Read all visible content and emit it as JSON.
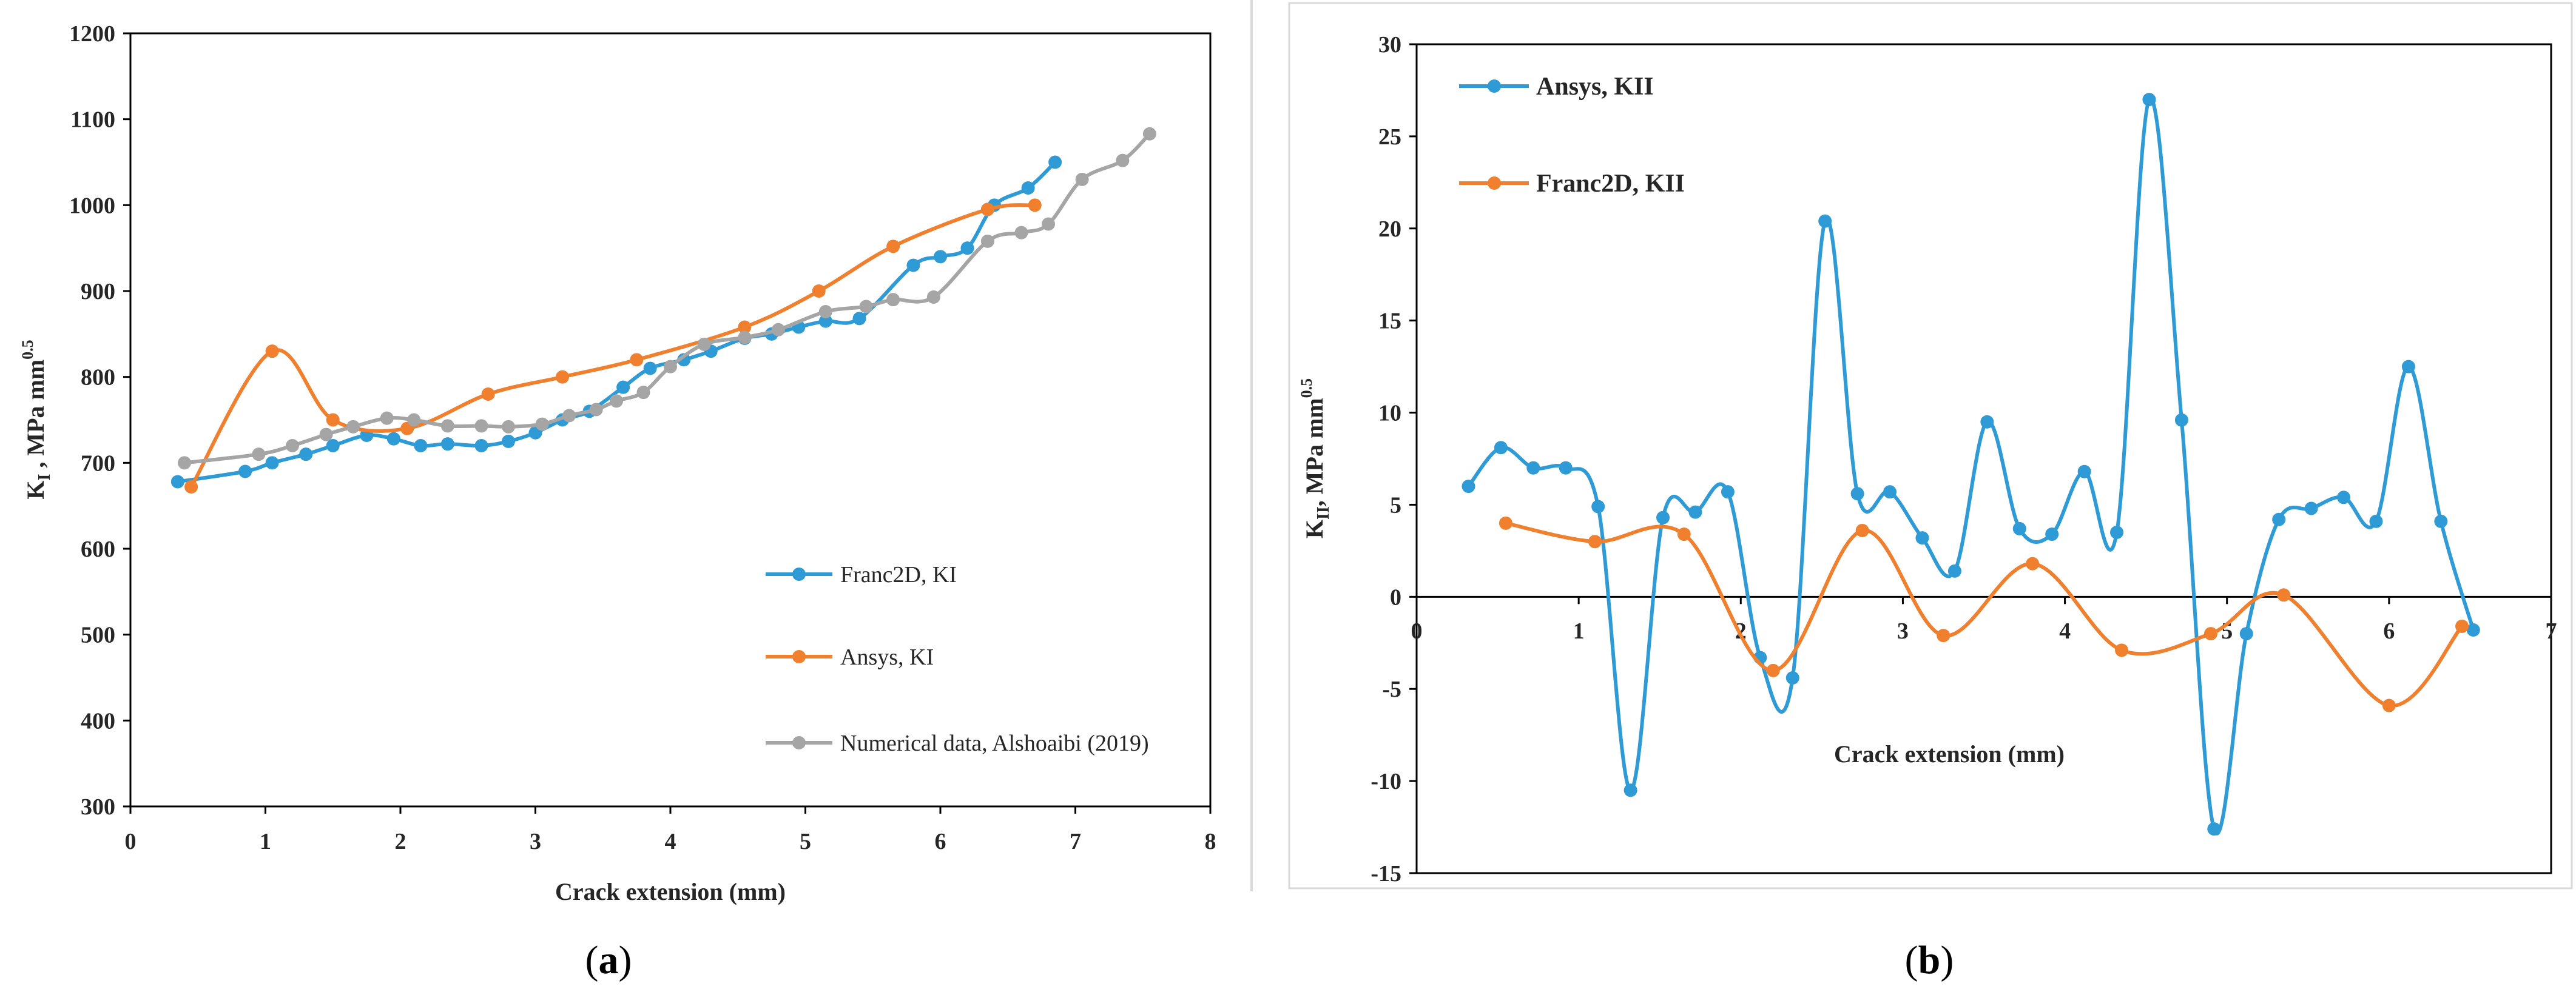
{
  "chart_data": [
    {
      "id": "a",
      "panel_label": "a",
      "type": "line",
      "title": "",
      "xlabel": "Crack extension (mm)",
      "ylabel_main": "K",
      "ylabel_sub": "I",
      "ylabel_rest": " , MPa mm",
      "ylabel_sup": "0.5",
      "xlim": [
        0,
        8
      ],
      "ylim": [
        300,
        1200
      ],
      "x_ticks": [
        "0",
        "1",
        "2",
        "3",
        "4",
        "5",
        "6",
        "7",
        "8"
      ],
      "y_ticks": [
        "300",
        "400",
        "500",
        "600",
        "700",
        "800",
        "900",
        "1000",
        "1100",
        "1200"
      ],
      "legend_position": "bottom-right",
      "series": [
        {
          "name": "Franc2D, KI",
          "color": "#2E9BD6",
          "x": [
            0.35,
            0.85,
            1.05,
            1.3,
            1.5,
            1.75,
            1.95,
            2.15,
            2.35,
            2.6,
            2.8,
            3.0,
            3.2,
            3.4,
            3.65,
            3.85,
            4.1,
            4.3,
            4.55,
            4.75,
            4.95,
            5.15,
            5.4,
            5.8,
            6.0,
            6.2,
            6.4,
            6.65,
            6.85
          ],
          "y": [
            678,
            690,
            700,
            710,
            720,
            732,
            728,
            720,
            722,
            720,
            725,
            735,
            750,
            760,
            788,
            810,
            820,
            830,
            845,
            850,
            858,
            865,
            868,
            930,
            940,
            950,
            1000,
            1020,
            1050
          ]
        },
        {
          "name": "Ansys, KI",
          "color": "#F07F2E",
          "x": [
            0.45,
            1.05,
            1.5,
            2.05,
            2.65,
            3.2,
            3.75,
            4.55,
            5.1,
            5.65,
            6.35,
            6.7
          ],
          "y": [
            672,
            830,
            750,
            740,
            780,
            800,
            820,
            858,
            900,
            952,
            995,
            1000
          ]
        },
        {
          "name": "Numerical data, Alshoaibi (2019)",
          "color": "#A5A5A5",
          "x": [
            0.4,
            0.95,
            1.2,
            1.45,
            1.65,
            1.9,
            2.1,
            2.35,
            2.6,
            2.8,
            3.05,
            3.25,
            3.45,
            3.6,
            3.8,
            4.0,
            4.25,
            4.55,
            4.8,
            5.15,
            5.45,
            5.65,
            5.95,
            6.35,
            6.6,
            6.8,
            7.05,
            7.35,
            7.55
          ],
          "y": [
            700,
            710,
            720,
            733,
            742,
            752,
            750,
            743,
            743,
            742,
            745,
            755,
            762,
            772,
            782,
            812,
            838,
            846,
            855,
            876,
            882,
            890,
            893,
            958,
            968,
            978,
            1030,
            1052,
            1083
          ]
        }
      ]
    },
    {
      "id": "b",
      "panel_label": "b",
      "type": "line",
      "title": "",
      "xlabel": "Crack extension (mm)",
      "ylabel_main": "K",
      "ylabel_sub": "II",
      "ylabel_rest": ", MPa mm",
      "ylabel_sup": "0.5",
      "xlim": [
        0,
        7
      ],
      "ylim": [
        -15,
        30
      ],
      "x_ticks": [
        "0",
        "1",
        "2",
        "3",
        "4",
        "5",
        "6",
        "7"
      ],
      "y_ticks": [
        "-15",
        "-10",
        "-5",
        "0",
        "5",
        "10",
        "15",
        "20",
        "25",
        "30"
      ],
      "legend_position": "top-left",
      "series": [
        {
          "name": "Ansys, KII",
          "color": "#2E9BD6",
          "x": [
            0.32,
            0.52,
            0.72,
            0.92,
            1.12,
            1.32,
            1.52,
            1.72,
            1.92,
            2.12,
            2.32,
            2.52,
            2.72,
            2.92,
            3.12,
            3.32,
            3.52,
            3.72,
            3.92,
            4.12,
            4.32,
            4.52,
            4.72,
            4.92,
            5.12,
            5.32,
            5.52,
            5.72,
            5.92,
            6.12,
            6.32,
            6.52
          ],
          "y": [
            6.0,
            8.1,
            7.0,
            7.0,
            4.9,
            -10.5,
            4.3,
            4.6,
            5.7,
            -3.3,
            -4.4,
            20.4,
            5.6,
            5.7,
            3.2,
            1.4,
            9.5,
            3.7,
            3.4,
            6.8,
            3.5,
            27.0,
            9.6,
            -12.6,
            -2.0,
            4.2,
            4.8,
            5.4,
            4.1,
            12.5,
            4.1,
            -1.8
          ]
        },
        {
          "name": "Franc2D, KII",
          "color": "#F07F2E",
          "x": [
            0.55,
            1.1,
            1.65,
            2.2,
            2.75,
            3.25,
            3.8,
            4.35,
            4.9,
            5.35,
            6.0,
            6.45
          ],
          "y": [
            4.0,
            3.0,
            3.4,
            -4.0,
            3.6,
            -2.1,
            1.8,
            -2.9,
            -2.0,
            0.1,
            -5.9,
            -1.6
          ]
        }
      ]
    }
  ]
}
